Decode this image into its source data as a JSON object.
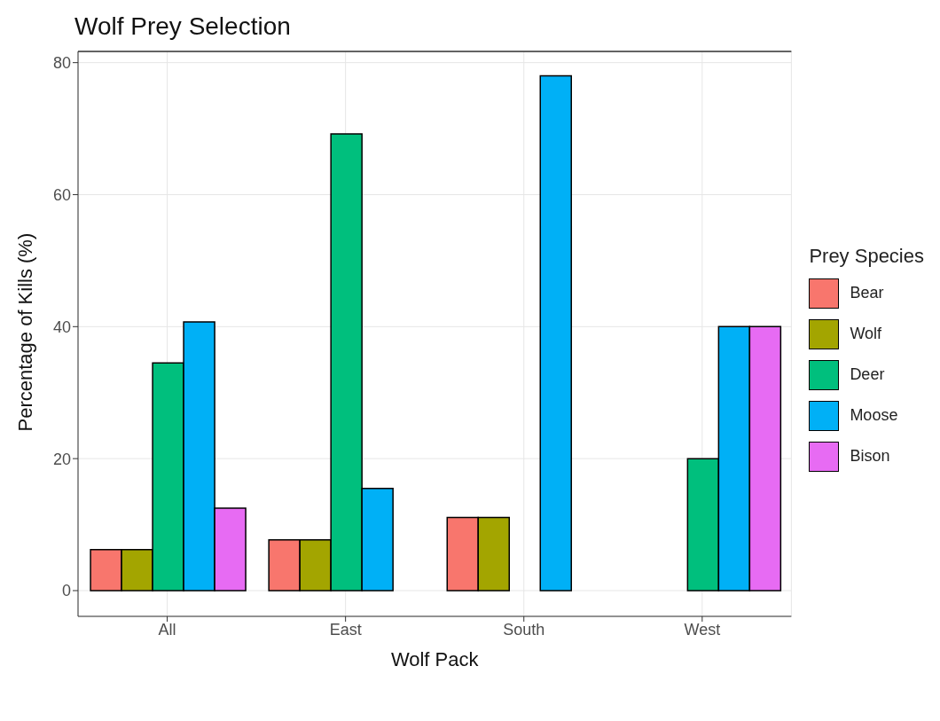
{
  "chart_data": {
    "type": "bar",
    "title": "Wolf Prey Selection",
    "xlabel": "Wolf Pack",
    "ylabel": "Percentage of Kills (%)",
    "legend_title": "Prey Species",
    "categories": [
      "All",
      "East",
      "South",
      "West"
    ],
    "series": [
      {
        "name": "Bear",
        "color": "#f8766d",
        "values": [
          6.2,
          7.7,
          11.1,
          0
        ]
      },
      {
        "name": "Wolf",
        "color": "#a3a500",
        "values": [
          6.2,
          7.7,
          11.1,
          0
        ]
      },
      {
        "name": "Deer",
        "color": "#00bf7d",
        "values": [
          34.5,
          69.2,
          0,
          20
        ]
      },
      {
        "name": "Moose",
        "color": "#00b0f6",
        "values": [
          40.7,
          15.5,
          78,
          40
        ]
      },
      {
        "name": "Bison",
        "color": "#e76bf3",
        "values": [
          12.5,
          0,
          0,
          40
        ]
      }
    ],
    "ylim": [
      -3.9,
      81.7
    ],
    "yticks": [
      0,
      20,
      40,
      60,
      80
    ],
    "grid": true,
    "legend": "right"
  }
}
